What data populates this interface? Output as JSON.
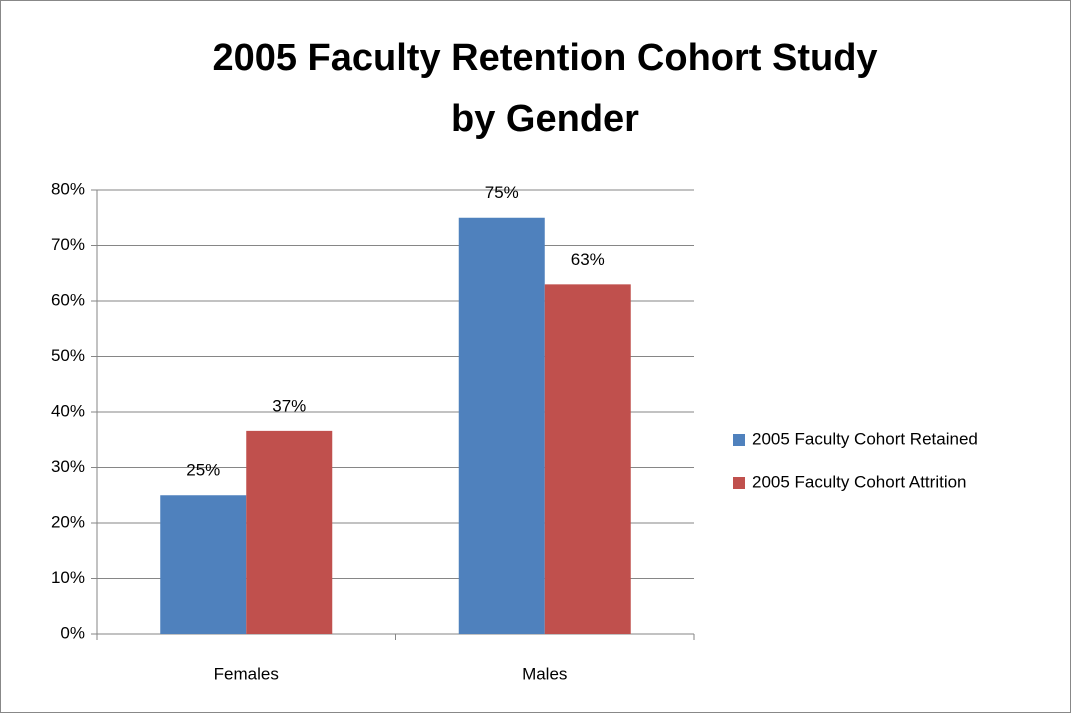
{
  "chart_data": {
    "type": "bar",
    "title": [
      "2005 Faculty Retention Cohort Study",
      "by Gender"
    ],
    "categories": [
      "Females",
      "Males"
    ],
    "series": [
      {
        "name": "2005 Faculty Cohort Retained",
        "color": "#4f81bd",
        "values": [
          25,
          75
        ],
        "value_labels": [
          "25%",
          "75%"
        ]
      },
      {
        "name": "2005 Faculty Cohort Attrition",
        "color": "#c0504d",
        "values": [
          36.6,
          63
        ],
        "value_labels": [
          "37%",
          "63%"
        ]
      }
    ],
    "ylim": [
      0,
      80
    ],
    "yticks": [
      {
        "value": 0,
        "label": "0%"
      },
      {
        "value": 10,
        "label": "10%"
      },
      {
        "value": 20,
        "label": "20%"
      },
      {
        "value": 30,
        "label": "30%"
      },
      {
        "value": 40,
        "label": "40%"
      },
      {
        "value": 50,
        "label": "50%"
      },
      {
        "value": 60,
        "label": "60%"
      },
      {
        "value": 70,
        "label": "70%"
      },
      {
        "value": 80,
        "label": "80%"
      }
    ],
    "grid": true,
    "legend": "right"
  }
}
